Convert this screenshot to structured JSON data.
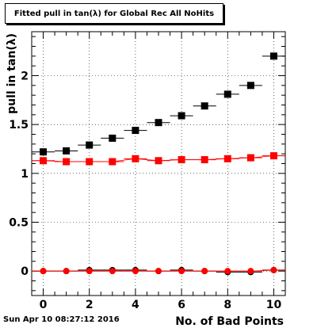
{
  "chart_data": {
    "type": "scatter",
    "title": "Fitted pull in tan(λ) for Global Rec All NoHits",
    "xlabel": "No. of Bad Points",
    "ylabel": "pull in tan(λ)",
    "xlim": [
      -0.5,
      10.5
    ],
    "ylim": [
      -0.25,
      2.45
    ],
    "xticks": [
      0,
      2,
      4,
      6,
      8,
      10
    ],
    "yticks": [
      0,
      0.5,
      1,
      1.5,
      2
    ],
    "xtick_labels": [
      "0",
      "2",
      "4",
      "6",
      "8",
      "10"
    ],
    "ytick_labels": [
      "0",
      "0.5",
      "1",
      "1.5",
      "2"
    ],
    "grid": true,
    "series": [
      {
        "color": "#000000",
        "marker": "square",
        "x": [
          0,
          1,
          2,
          3,
          4,
          5,
          6,
          7,
          8,
          9,
          10
        ],
        "y": [
          1.22,
          1.23,
          1.29,
          1.36,
          1.44,
          1.52,
          1.59,
          1.69,
          1.81,
          1.9,
          2.2
        ]
      },
      {
        "color": "#ff0000",
        "marker": "square",
        "x": [
          0,
          1,
          2,
          3,
          4,
          5,
          6,
          7,
          8,
          9,
          10
        ],
        "y": [
          1.13,
          1.12,
          1.12,
          1.12,
          1.15,
          1.13,
          1.14,
          1.14,
          1.15,
          1.16,
          1.18
        ]
      },
      {
        "color": "#000000",
        "marker": "circle",
        "x": [
          0,
          1,
          2,
          3,
          4,
          5,
          6,
          7,
          8,
          9,
          10
        ],
        "y": [
          0.0,
          0.0,
          0.01,
          0.01,
          0.01,
          0.0,
          0.01,
          0.0,
          -0.01,
          -0.01,
          0.01
        ]
      },
      {
        "color": "#ff0000",
        "marker": "circle",
        "x": [
          0,
          1,
          2,
          3,
          4,
          5,
          6,
          7,
          8,
          9,
          10
        ],
        "y": [
          0.0,
          0.0,
          0.0,
          0.0,
          0.0,
          0.0,
          0.0,
          0.0,
          0.0,
          0.0,
          0.01
        ]
      }
    ]
  },
  "footer": {
    "date": "Sun Apr 10 08:27:12 2016"
  }
}
